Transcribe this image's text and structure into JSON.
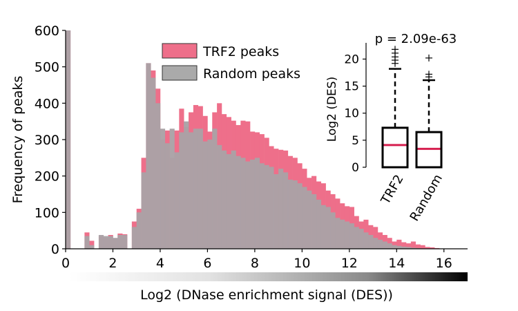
{
  "chart_data": [
    {
      "type": "bar",
      "subtype": "overlaid-histogram",
      "title": "",
      "xlabel": "Log2 (DNase enrichment signal (DES))",
      "ylabel": "Frequency of peaks",
      "xlim": [
        0,
        17
      ],
      "ylim": [
        0,
        600
      ],
      "xticks": [
        "0",
        "2",
        "4",
        "6",
        "8",
        "10",
        "12",
        "14",
        "16"
      ],
      "yticks": [
        "0",
        "100",
        "200",
        "300",
        "400",
        "500",
        "600"
      ],
      "bin_width": 0.2,
      "legend": {
        "placement": "top-center",
        "entries": [
          "TRF2 peaks",
          "Random peaks"
        ]
      },
      "colors": {
        "TRF2 peaks": "#ee6f8a",
        "Random peaks": "#a9a8a8",
        "overlap": "#aaa2a6"
      },
      "series": [
        {
          "name": "TRF2 peaks",
          "bins": [
            [
              0.1,
              600
            ],
            [
              0.9,
              45
            ],
            [
              1.1,
              22
            ],
            [
              1.5,
              35
            ],
            [
              1.7,
              30
            ],
            [
              1.9,
              38
            ],
            [
              2.1,
              28
            ],
            [
              2.3,
              42
            ],
            [
              2.5,
              40
            ],
            [
              2.9,
              75
            ],
            [
              3.1,
              110
            ],
            [
              3.3,
              250
            ],
            [
              3.5,
              510
            ],
            [
              3.7,
              490
            ],
            [
              3.9,
              440
            ],
            [
              4.1,
              300
            ],
            [
              4.3,
              325
            ],
            [
              4.5,
              250
            ],
            [
              4.7,
              325
            ],
            [
              4.9,
              385
            ],
            [
              5.1,
              335
            ],
            [
              5.3,
              375
            ],
            [
              5.5,
              395
            ],
            [
              5.7,
              392
            ],
            [
              5.9,
              365
            ],
            [
              6.1,
              322
            ],
            [
              6.3,
              375
            ],
            [
              6.5,
              400
            ],
            [
              6.7,
              370
            ],
            [
              6.9,
              362
            ],
            [
              7.1,
              352
            ],
            [
              7.3,
              340
            ],
            [
              7.5,
              352
            ],
            [
              7.7,
              350
            ],
            [
              7.9,
              322
            ],
            [
              8.1,
              320
            ],
            [
              8.3,
              315
            ],
            [
              8.5,
              305
            ],
            [
              8.7,
              282
            ],
            [
              8.9,
              275
            ],
            [
              9.1,
              272
            ],
            [
              9.3,
              270
            ],
            [
              9.5,
              255
            ],
            [
              9.7,
              250
            ],
            [
              9.9,
              235
            ],
            [
              10.1,
              220
            ],
            [
              10.3,
              195
            ],
            [
              10.5,
              200
            ],
            [
              10.7,
              185
            ],
            [
              10.9,
              180
            ],
            [
              11.1,
              160
            ],
            [
              11.3,
              150
            ],
            [
              11.5,
              138
            ],
            [
              11.7,
              125
            ],
            [
              11.9,
              117
            ],
            [
              12.1,
              115
            ],
            [
              12.3,
              90
            ],
            [
              12.5,
              75
            ],
            [
              12.7,
              80
            ],
            [
              12.9,
              65
            ],
            [
              13.1,
              60
            ],
            [
              13.3,
              45
            ],
            [
              13.5,
              38
            ],
            [
              13.7,
              30
            ],
            [
              13.9,
              20
            ],
            [
              14.1,
              25
            ],
            [
              14.3,
              18
            ],
            [
              14.5,
              15
            ],
            [
              14.7,
              20
            ],
            [
              14.9,
              12
            ],
            [
              15.1,
              10
            ],
            [
              15.3,
              5
            ],
            [
              15.5,
              4
            ],
            [
              15.7,
              2
            ]
          ]
        },
        {
          "name": "Random peaks",
          "bins": [
            [
              0.1,
              600
            ],
            [
              0.9,
              35
            ],
            [
              1.1,
              10
            ],
            [
              1.5,
              38
            ],
            [
              1.7,
              35
            ],
            [
              1.9,
              35
            ],
            [
              2.1,
              30
            ],
            [
              2.3,
              38
            ],
            [
              2.5,
              38
            ],
            [
              2.9,
              60
            ],
            [
              3.1,
              100
            ],
            [
              3.3,
              210
            ],
            [
              3.5,
              510
            ],
            [
              3.7,
              470
            ],
            [
              3.9,
              400
            ],
            [
              4.1,
              330
            ],
            [
              4.3,
              290
            ],
            [
              4.5,
              330
            ],
            [
              4.7,
              265
            ],
            [
              4.9,
              320
            ],
            [
              5.1,
              350
            ],
            [
              5.3,
              320
            ],
            [
              5.5,
              330
            ],
            [
              5.7,
              330
            ],
            [
              5.9,
              295
            ],
            [
              6.1,
              300
            ],
            [
              6.3,
              330
            ],
            [
              6.5,
              285
            ],
            [
              6.7,
              270
            ],
            [
              6.9,
              260
            ],
            [
              7.1,
              270
            ],
            [
              7.3,
              255
            ],
            [
              7.5,
              250
            ],
            [
              7.7,
              240
            ],
            [
              7.9,
              245
            ],
            [
              8.1,
              250
            ],
            [
              8.3,
              235
            ],
            [
              8.5,
              230
            ],
            [
              8.7,
              225
            ],
            [
              8.9,
              205
            ],
            [
              9.1,
              220
            ],
            [
              9.3,
              210
            ],
            [
              9.5,
              190
            ],
            [
              9.7,
              188
            ],
            [
              9.9,
              180
            ],
            [
              10.1,
              170
            ],
            [
              10.3,
              160
            ],
            [
              10.5,
              150
            ],
            [
              10.7,
              135
            ],
            [
              10.9,
              120
            ],
            [
              11.1,
              115
            ],
            [
              11.3,
              100
            ],
            [
              11.5,
              85
            ],
            [
              11.7,
              80
            ],
            [
              11.9,
              75
            ],
            [
              12.1,
              70
            ],
            [
              12.3,
              60
            ],
            [
              12.5,
              55
            ],
            [
              12.7,
              45
            ],
            [
              12.9,
              38
            ],
            [
              13.1,
              30
            ],
            [
              13.3,
              25
            ],
            [
              13.5,
              20
            ],
            [
              13.7,
              15
            ],
            [
              13.9,
              10
            ],
            [
              14.1,
              8
            ],
            [
              14.3,
              6
            ],
            [
              14.5,
              5
            ],
            [
              14.7,
              3
            ],
            [
              14.9,
              2
            ],
            [
              15.1,
              1
            ]
          ]
        }
      ]
    },
    {
      "type": "box",
      "title": "p = 2.09e-63",
      "xlabel": "",
      "ylabel": "Log2 (DES)",
      "ylim": [
        0,
        23
      ],
      "yticks": [
        "0",
        "5",
        "10",
        "15",
        "20"
      ],
      "categories": [
        "TRF2",
        "Random"
      ],
      "median_color": "#d61f4f",
      "boxes": [
        {
          "name": "TRF2",
          "whisker_low": 0,
          "q1": 0,
          "median": 4.1,
          "q3": 7.3,
          "whisker_high": 18.2,
          "outliers": [
            19.2,
            19.8,
            20.4,
            21.1,
            21.8
          ]
        },
        {
          "name": "Random",
          "whisker_low": 0,
          "q1": 0,
          "median": 3.4,
          "q3": 6.5,
          "whisker_high": 16.1,
          "outliers": [
            16.7,
            17.2,
            20.2
          ]
        }
      ]
    }
  ]
}
